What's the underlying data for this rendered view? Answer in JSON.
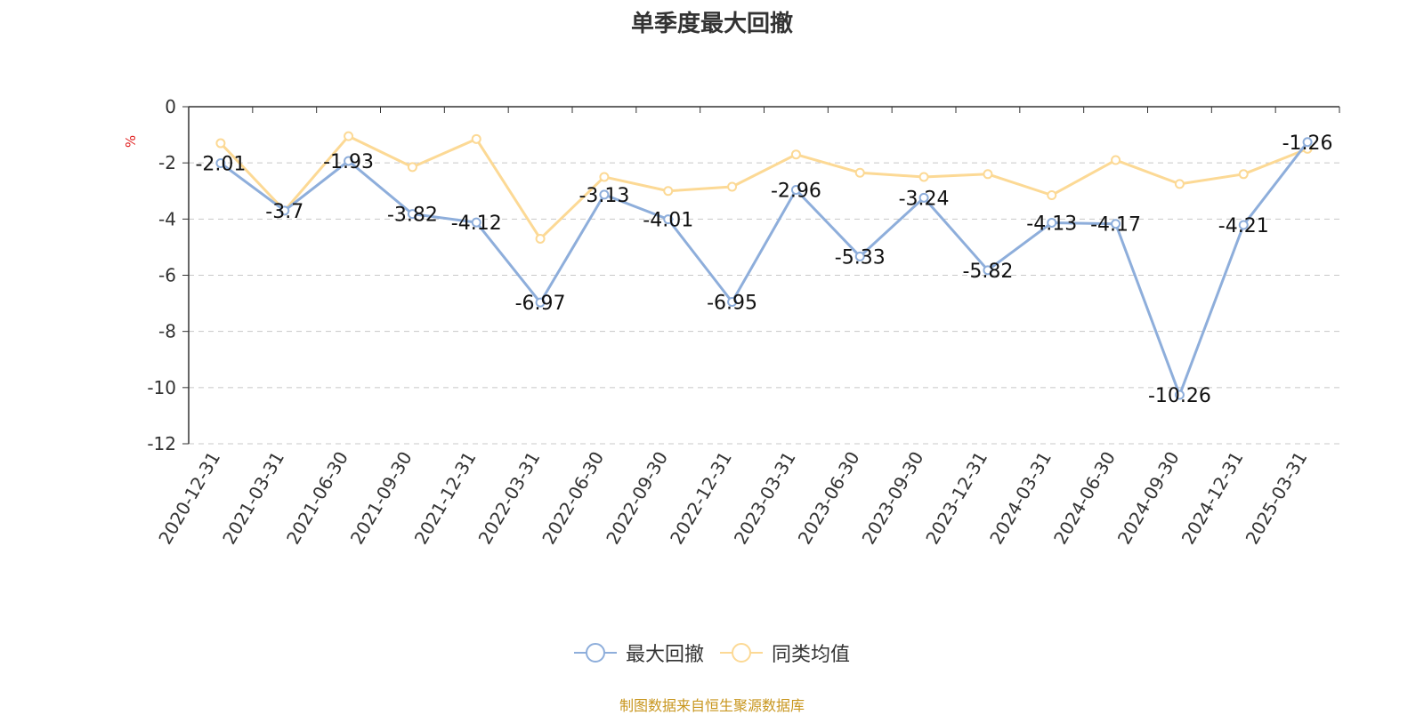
{
  "chart_data": {
    "type": "line",
    "title": "单季度最大回撤",
    "ylabel": "%",
    "ylim": [
      -12,
      0
    ],
    "yticks": [
      0,
      -2,
      -4,
      -6,
      -8,
      -10,
      -12
    ],
    "grid": true,
    "legend_position": "bottom-center",
    "categories": [
      "2020-12-31",
      "2021-03-31",
      "2021-06-30",
      "2021-09-30",
      "2021-12-31",
      "2022-03-31",
      "2022-06-30",
      "2022-09-30",
      "2022-12-31",
      "2023-03-31",
      "2023-06-30",
      "2023-09-30",
      "2023-12-31",
      "2024-03-31",
      "2024-06-30",
      "2024-09-30",
      "2024-12-31",
      "2025-03-31"
    ],
    "series": [
      {
        "name": "最大回撤",
        "color": "#8eaedb",
        "show_labels": true,
        "values": [
          -2.01,
          -3.7,
          -1.93,
          -3.82,
          -4.12,
          -6.97,
          -3.13,
          -4.01,
          -6.95,
          -2.96,
          -5.33,
          -3.24,
          -5.82,
          -4.13,
          -4.17,
          -10.26,
          -4.21,
          -1.26
        ]
      },
      {
        "name": "同类均值",
        "color": "#fcd995",
        "show_labels": false,
        "values": [
          -1.3,
          -3.7,
          -1.05,
          -2.15,
          -1.15,
          -4.7,
          -2.5,
          -3.0,
          -2.85,
          -1.7,
          -2.35,
          -2.5,
          -2.4,
          -3.15,
          -1.9,
          -2.75,
          -2.4,
          -1.5
        ]
      }
    ],
    "source": "制图数据来自恒生聚源数据库"
  }
}
